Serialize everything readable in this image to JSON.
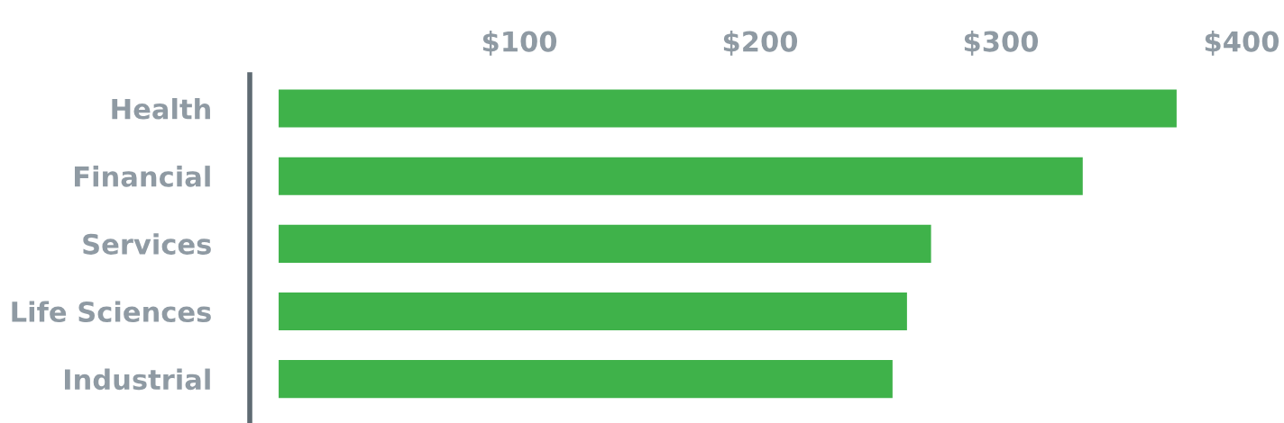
{
  "chart_data": {
    "type": "bar",
    "orientation": "horizontal",
    "categories": [
      "Health",
      "Financial",
      "Services",
      "Life Sciences",
      "Industrial"
    ],
    "values": [
      373,
      334,
      271,
      261,
      255
    ],
    "color": "#3fb24a",
    "xlim": [
      -12,
      400
    ],
    "xticks": [
      {
        "value": 100,
        "label": "$100"
      },
      {
        "value": 200,
        "label": "$200"
      },
      {
        "value": 300,
        "label": "$300"
      },
      {
        "value": 400,
        "label": "$400"
      }
    ],
    "grid": false,
    "legend": false
  }
}
